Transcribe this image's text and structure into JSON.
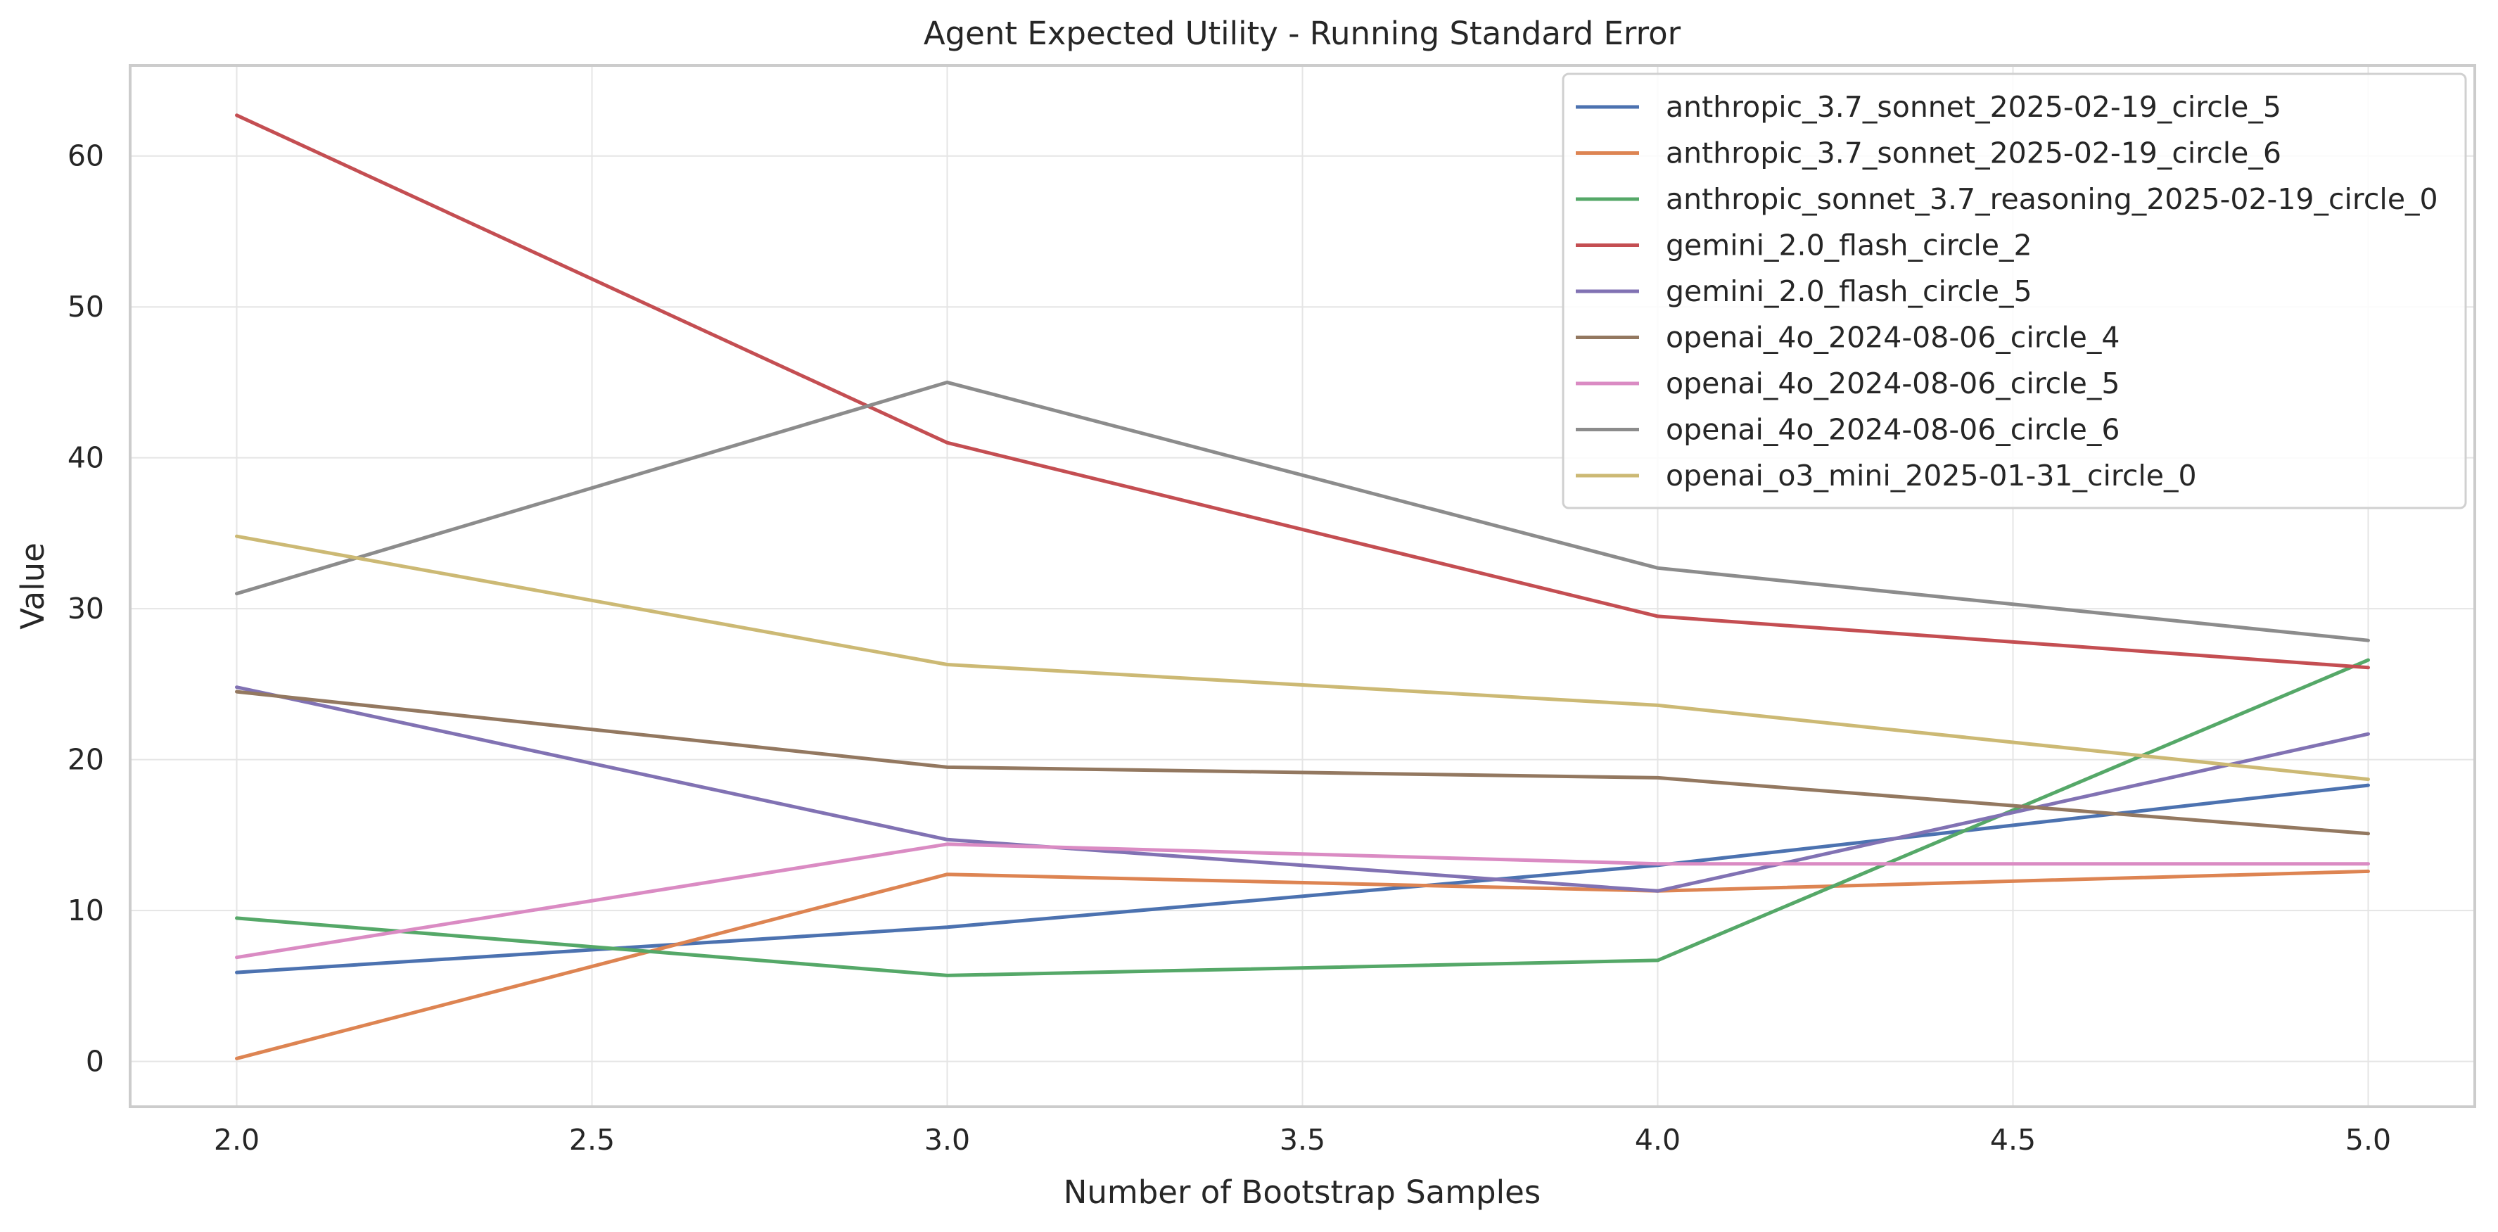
{
  "chart_data": {
    "type": "line",
    "title": "Agent Expected Utility - Running Standard Error",
    "xlabel": "Number of Bootstrap Samples",
    "ylabel": "Value",
    "x": [
      2.0,
      3.0,
      4.0,
      5.0
    ],
    "xlim": [
      1.85,
      5.15
    ],
    "ylim": [
      -3,
      66
    ],
    "xticks": [
      2.0,
      2.5,
      3.0,
      3.5,
      4.0,
      4.5,
      5.0
    ],
    "xtick_labels": [
      "2.0",
      "2.5",
      "3.0",
      "3.5",
      "4.0",
      "4.5",
      "5.0"
    ],
    "yticks": [
      0,
      10,
      20,
      30,
      40,
      50,
      60
    ],
    "ytick_labels": [
      "0",
      "10",
      "20",
      "30",
      "40",
      "50",
      "60"
    ],
    "grid": true,
    "legend_position": "top-right",
    "series": [
      {
        "name": "anthropic_3.7_sonnet_2025-02-19_circle_5",
        "color": "#4c72b0",
        "values": [
          5.9,
          8.9,
          13.0,
          18.3
        ]
      },
      {
        "name": "anthropic_3.7_sonnet_2025-02-19_circle_6",
        "color": "#dd8452",
        "values": [
          0.2,
          12.4,
          11.3,
          12.6
        ]
      },
      {
        "name": "anthropic_sonnet_3.7_reasoning_2025-02-19_circle_0",
        "color": "#55a868",
        "values": [
          9.5,
          5.7,
          6.7,
          26.6
        ]
      },
      {
        "name": "gemini_2.0_flash_circle_2",
        "color": "#c44e52",
        "values": [
          62.7,
          41.0,
          29.5,
          26.1
        ]
      },
      {
        "name": "gemini_2.0_flash_circle_5",
        "color": "#8172b3",
        "values": [
          24.8,
          14.7,
          11.3,
          21.7
        ]
      },
      {
        "name": "openai_4o_2024-08-06_circle_4",
        "color": "#937860",
        "values": [
          24.5,
          19.5,
          18.8,
          15.1
        ]
      },
      {
        "name": "openai_4o_2024-08-06_circle_5",
        "color": "#da8bc3",
        "values": [
          6.9,
          14.4,
          13.1,
          13.1
        ]
      },
      {
        "name": "openai_4o_2024-08-06_circle_6",
        "color": "#8c8c8c",
        "values": [
          31.0,
          45.0,
          32.7,
          27.9
        ]
      },
      {
        "name": "openai_o3_mini_2025-01-31_circle_0",
        "color": "#ccb974",
        "values": [
          34.8,
          26.3,
          23.6,
          18.7
        ]
      }
    ]
  }
}
